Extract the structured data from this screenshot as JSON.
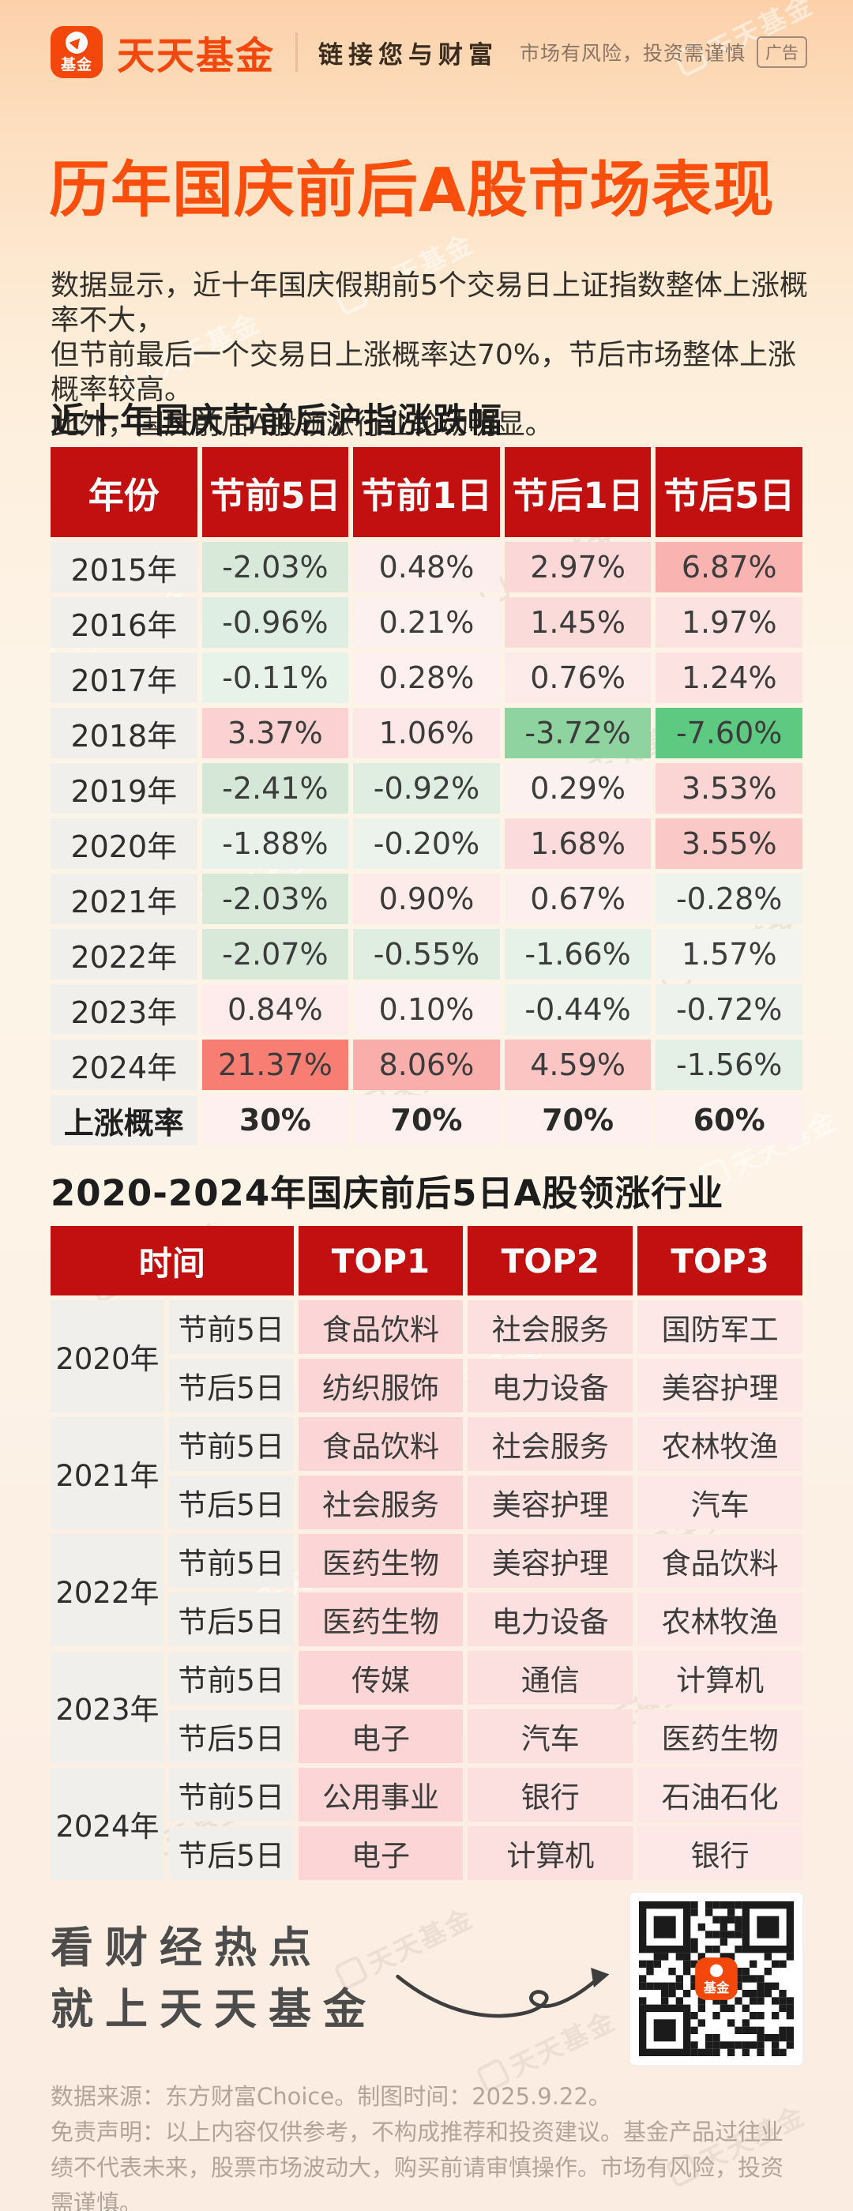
{
  "brand": {
    "name": "天天基金",
    "logo_text": "基金",
    "slogan": "链接您与财富",
    "risk_note": "市场有风险，投资需谨慎",
    "ad_badge": "广告",
    "watermark": "天天基金"
  },
  "title": "历年国庆前后A股市场表现",
  "intro_lines": [
    "数据显示，近十年国庆假期前5个交易日上证指数整体上涨概率不大，",
    "但节前最后一个交易日上涨概率达70%，节后市场整体上涨概率较高。",
    "此外，国庆前后A股领涨行业轮动明显。"
  ],
  "section1": {
    "title": "近十年国庆节前后沪指涨跌幅"
  },
  "table1": {
    "headers": [
      "年份",
      "节前5日",
      "节前1日",
      "节后1日",
      "节后5日"
    ],
    "rows": [
      {
        "year": "2015年",
        "values": [
          "-2.03%",
          "0.48%",
          "2.97%",
          "6.87%"
        ],
        "colors": [
          "#d8e9da",
          "#fdeeee",
          "#fbd7d7",
          "#f9b3b0"
        ]
      },
      {
        "year": "2016年",
        "values": [
          "-0.96%",
          "0.21%",
          "1.45%",
          "1.97%"
        ],
        "colors": [
          "#dfeee2",
          "#fdf1f0",
          "#fbdada",
          "#fce2e1"
        ]
      },
      {
        "year": "2017年",
        "values": [
          "-0.11%",
          "0.28%",
          "0.76%",
          "1.24%"
        ],
        "colors": [
          "#e7f2e9",
          "#fdf0ef",
          "#fdebea",
          "#fce3e2"
        ]
      },
      {
        "year": "2018年",
        "values": [
          "3.37%",
          "1.06%",
          "-3.72%",
          "-7.60%"
        ],
        "colors": [
          "#fbd2d1",
          "#fde8e7",
          "#8fd3a0",
          "#5dc981"
        ]
      },
      {
        "year": "2019年",
        "values": [
          "-2.41%",
          "-0.92%",
          "0.29%",
          "3.53%"
        ],
        "colors": [
          "#d5e8d8",
          "#dfeee1",
          "#fdf1f0",
          "#fbd5d4"
        ]
      },
      {
        "year": "2020年",
        "values": [
          "-1.88%",
          "-0.20%",
          "1.68%",
          "3.55%"
        ],
        "colors": [
          "#e9f2ea",
          "#ebf3ec",
          "#fbdbdb",
          "#fac8c6"
        ]
      },
      {
        "year": "2021年",
        "values": [
          "-2.03%",
          "0.90%",
          "0.67%",
          "-0.28%"
        ],
        "colors": [
          "#d8e9da",
          "#fdebea",
          "#fdefee",
          "#eef3ed"
        ]
      },
      {
        "year": "2022年",
        "values": [
          "-2.07%",
          "-0.55%",
          "-1.66%",
          "1.57%"
        ],
        "colors": [
          "#d8e9da",
          "#e0eee2",
          "#e6f1e8",
          "#f3f3ef"
        ]
      },
      {
        "year": "2023年",
        "values": [
          "0.84%",
          "0.10%",
          "-0.44%",
          "-0.72%"
        ],
        "colors": [
          "#fdeceb",
          "#fdf2f1",
          "#eff3ee",
          "#edf2ec"
        ]
      },
      {
        "year": "2024年",
        "values": [
          "21.37%",
          "8.06%",
          "4.59%",
          "-1.56%"
        ],
        "colors": [
          "#f87e74",
          "#f9aeab",
          "#fbc5c3",
          "#e4f0e6"
        ]
      }
    ],
    "prob_row": {
      "label": "上涨概率",
      "values": [
        "30%",
        "70%",
        "70%",
        "60%"
      ],
      "value_bg": "#fdf0ef"
    }
  },
  "section2": {
    "title": "2020-2024年国庆前后5日A股领涨行业"
  },
  "table2": {
    "time_header": "时间",
    "top_headers": [
      "TOP1",
      "TOP2",
      "TOP3"
    ],
    "top_colors": [
      "#fcd6d6",
      "#fcdfdf",
      "#fde8e7"
    ],
    "groups": [
      {
        "year": "2020年",
        "rows": [
          {
            "period": "节前5日",
            "tops": [
              "食品饮料",
              "社会服务",
              "国防军工"
            ]
          },
          {
            "period": "节后5日",
            "tops": [
              "纺织服饰",
              "电力设备",
              "美容护理"
            ]
          }
        ]
      },
      {
        "year": "2021年",
        "rows": [
          {
            "period": "节前5日",
            "tops": [
              "食品饮料",
              "社会服务",
              "农林牧渔"
            ]
          },
          {
            "period": "节后5日",
            "tops": [
              "社会服务",
              "美容护理",
              "汽车"
            ]
          }
        ]
      },
      {
        "year": "2022年",
        "rows": [
          {
            "period": "节前5日",
            "tops": [
              "医药生物",
              "美容护理",
              "食品饮料"
            ]
          },
          {
            "period": "节后5日",
            "tops": [
              "医药生物",
              "电力设备",
              "农林牧渔"
            ]
          }
        ]
      },
      {
        "year": "2023年",
        "rows": [
          {
            "period": "节前5日",
            "tops": [
              "传媒",
              "通信",
              "计算机"
            ]
          },
          {
            "period": "节后5日",
            "tops": [
              "电子",
              "汽车",
              "医药生物"
            ]
          }
        ]
      },
      {
        "year": "2024年",
        "rows": [
          {
            "period": "节前5日",
            "tops": [
              "公用事业",
              "银行",
              "石油石化"
            ]
          },
          {
            "period": "节后5日",
            "tops": [
              "电子",
              "计算机",
              "银行"
            ]
          }
        ]
      }
    ]
  },
  "footer": {
    "tagline_lines": [
      "看财经热点",
      "就上天天基金"
    ],
    "source": "数据来源：东方财富Choice。制图时间：2025.9.22。",
    "disclaimer": "免责声明：以上内容仅供参考，不构成推荐和投资建议。基金产品过往业绩不代表未来，股票市场波动大，购买前请审慎操作。市场有风险，投资需谨慎。"
  },
  "colors": {
    "header_red": "#c21010",
    "title_orange": "#fa4e0d",
    "brand_orange": "#f4470b",
    "up_pink_strong": "#f87e74",
    "down_green_strong": "#5dc981"
  }
}
